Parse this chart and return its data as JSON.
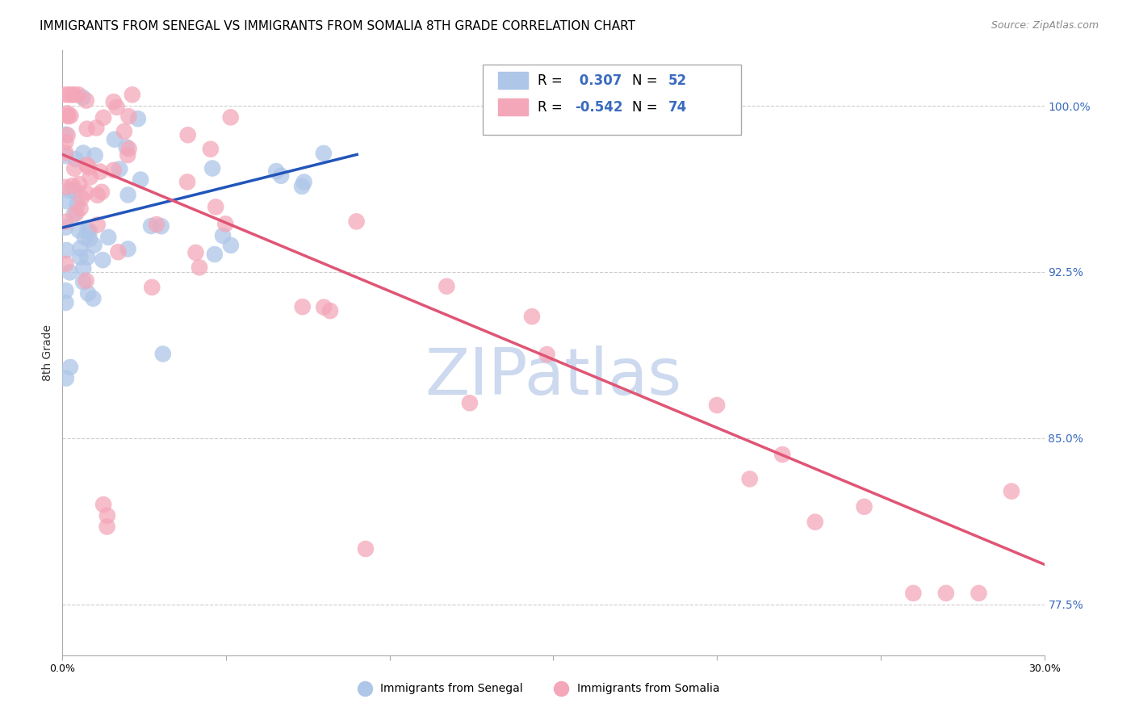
{
  "title": "IMMIGRANTS FROM SENEGAL VS IMMIGRANTS FROM SOMALIA 8TH GRADE CORRELATION CHART",
  "source": "Source: ZipAtlas.com",
  "ylabel": "8th Grade",
  "xlim": [
    0.0,
    0.3
  ],
  "ylim": [
    0.752,
    1.025
  ],
  "yticks": [
    0.775,
    0.85,
    0.925,
    1.0
  ],
  "ytick_labels": [
    "77.5%",
    "85.0%",
    "92.5%",
    "100.0%"
  ],
  "xticks": [
    0.0,
    0.05,
    0.1,
    0.15,
    0.2,
    0.25,
    0.3
  ],
  "xtick_labels": [
    "0.0%",
    "",
    "",
    "",
    "",
    "",
    "30.0%"
  ],
  "grid_color": "#cccccc",
  "bg_color": "#ffffff",
  "senegal_color": "#aec6e8",
  "somalia_color": "#f4a7b9",
  "senegal_line_color": "#2255bb",
  "somalia_line_color": "#e05575",
  "R_senegal": 0.307,
  "N_senegal": 52,
  "R_somalia": -0.542,
  "N_somalia": 74,
  "label_senegal": "Immigrants from Senegal",
  "label_somalia": "Immigrants from Somalia",
  "blue_text": "#3a6bbf",
  "title_fontsize": 11,
  "watermark_color": "#ccd9ee",
  "senegal_line_x0": 0.0,
  "senegal_line_y0": 0.945,
  "senegal_line_x1": 0.09,
  "senegal_line_y1": 0.978,
  "somalia_line_x0": 0.0,
  "somalia_line_y0": 0.978,
  "somalia_line_x1": 0.3,
  "somalia_line_y1": 0.793
}
